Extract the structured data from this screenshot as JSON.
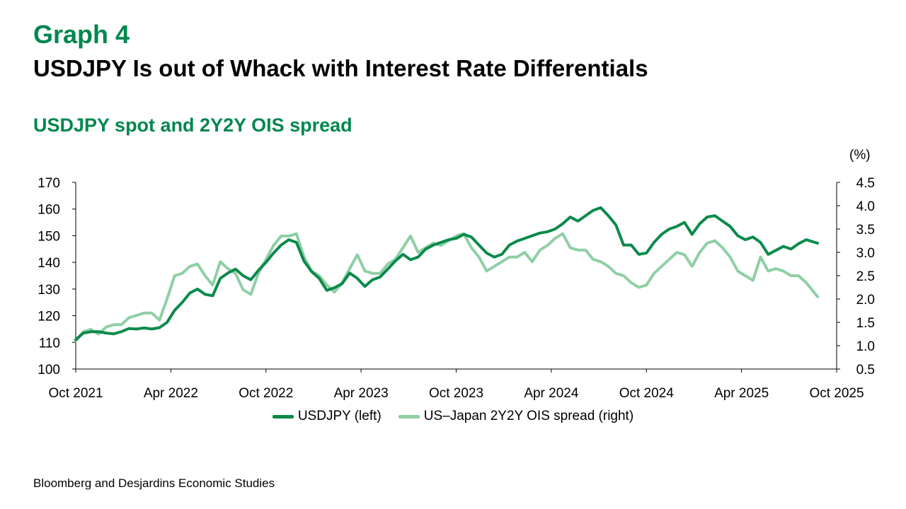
{
  "header": {
    "graph_number": "Graph 4",
    "title": "USDJPY Is out of Whack with Interest Rate Differentials",
    "subtitle": "USDJPY spot and 2Y2Y OIS spread"
  },
  "source": "Bloomberg and Desjardins Economic Studies",
  "colors": {
    "brand": "#00874e",
    "usdjpy": "#0a8a4b",
    "ois": "#8fcfa5"
  },
  "chart_data": {
    "type": "line",
    "title": "USDJPY spot and 2Y2Y OIS spread",
    "xlabel": "",
    "ylabel_left": "",
    "ylabel_right": "(%)",
    "x_ticks": [
      "Oct 2021",
      "Apr 2022",
      "Oct 2022",
      "Apr 2023",
      "Oct 2023",
      "Apr 2024",
      "Oct 2024",
      "Apr 2025",
      "Oct 2025"
    ],
    "x_range": [
      2021.75,
      2025.75
    ],
    "y_left_ticks": [
      "100",
      "110",
      "120",
      "130",
      "140",
      "150",
      "160",
      "170"
    ],
    "y_left_range": [
      100,
      170
    ],
    "y_right_ticks": [
      "0.5",
      "1.0",
      "1.5",
      "2.0",
      "2.5",
      "3.0",
      "3.5",
      "4.0",
      "4.5"
    ],
    "y_right_range": [
      0.5,
      4.5
    ],
    "grid": false,
    "legend_position": "bottom",
    "x": [
      2021.75,
      2021.79,
      2021.83,
      2021.87,
      2021.91,
      2021.95,
      2021.99,
      2022.03,
      2022.07,
      2022.11,
      2022.15,
      2022.19,
      2022.23,
      2022.27,
      2022.31,
      2022.35,
      2022.39,
      2022.43,
      2022.47,
      2022.51,
      2022.55,
      2022.59,
      2022.63,
      2022.67,
      2022.71,
      2022.75,
      2022.79,
      2022.83,
      2022.87,
      2022.91,
      2022.95,
      2022.99,
      2023.03,
      2023.07,
      2023.11,
      2023.15,
      2023.19,
      2023.23,
      2023.27,
      2023.31,
      2023.35,
      2023.39,
      2023.43,
      2023.47,
      2023.51,
      2023.55,
      2023.59,
      2023.63,
      2023.67,
      2023.71,
      2023.75,
      2023.79,
      2023.83,
      2023.87,
      2023.91,
      2023.95,
      2023.99,
      2024.03,
      2024.07,
      2024.11,
      2024.15,
      2024.19,
      2024.23,
      2024.27,
      2024.31,
      2024.35,
      2024.39,
      2024.43,
      2024.47,
      2024.51,
      2024.55,
      2024.59,
      2024.63,
      2024.67,
      2024.71,
      2024.75,
      2024.79,
      2024.83,
      2024.87,
      2024.91,
      2024.95,
      2024.99,
      2025.03,
      2025.07,
      2025.11,
      2025.15,
      2025.19,
      2025.23,
      2025.27,
      2025.31,
      2025.35,
      2025.39,
      2025.43,
      2025.47,
      2025.51,
      2025.55,
      2025.59,
      2025.65
    ],
    "series": [
      {
        "name": "USDJPY (left)",
        "axis": "left",
        "values": [
          111.0,
          113.5,
          114.0,
          114.0,
          113.5,
          113.2,
          114.0,
          115.2,
          115.0,
          115.4,
          115.0,
          115.5,
          117.5,
          122.0,
          125.0,
          128.5,
          130.0,
          128.0,
          127.5,
          134.0,
          136.0,
          137.5,
          135.0,
          133.5,
          137.0,
          140.0,
          143.5,
          146.5,
          148.5,
          147.5,
          140.5,
          136.5,
          134.0,
          129.5,
          130.5,
          132.0,
          136.0,
          134.0,
          131.0,
          133.5,
          134.5,
          137.5,
          140.5,
          143.0,
          141.0,
          142.0,
          145.0,
          146.5,
          147.5,
          148.5,
          149.0,
          150.5,
          149.5,
          146.5,
          143.5,
          142.0,
          143.0,
          146.5,
          148.0,
          149.0,
          150.0,
          151.0,
          151.5,
          152.5,
          154.5,
          157.0,
          155.5,
          157.5,
          159.5,
          160.5,
          157.5,
          154.0,
          146.5,
          146.5,
          143.0,
          143.5,
          147.5,
          150.5,
          152.5,
          153.5,
          155.0,
          150.5,
          154.5,
          157.0,
          157.5,
          155.5,
          153.5,
          150.0,
          148.5,
          149.5,
          147.5,
          143.0,
          144.5,
          146.0,
          145.0,
          147.0,
          148.5,
          147.2
        ]
      },
      {
        "name": "US–Japan 2Y2Y OIS spread (right)",
        "axis": "right",
        "values": [
          1.1,
          1.3,
          1.35,
          1.25,
          1.4,
          1.45,
          1.45,
          1.6,
          1.65,
          1.7,
          1.7,
          1.55,
          2.0,
          2.5,
          2.55,
          2.7,
          2.75,
          2.5,
          2.3,
          2.8,
          2.65,
          2.55,
          2.2,
          2.1,
          2.55,
          2.85,
          3.15,
          3.35,
          3.35,
          3.4,
          2.9,
          2.6,
          2.5,
          2.3,
          2.15,
          2.35,
          2.65,
          2.95,
          2.6,
          2.55,
          2.55,
          2.75,
          2.85,
          3.1,
          3.35,
          3.0,
          3.1,
          3.2,
          3.15,
          3.25,
          3.35,
          3.4,
          3.1,
          2.9,
          2.6,
          2.7,
          2.8,
          2.9,
          2.9,
          3.0,
          2.8,
          3.05,
          3.15,
          3.3,
          3.4,
          3.1,
          3.05,
          3.05,
          2.85,
          2.8,
          2.7,
          2.55,
          2.5,
          2.35,
          2.25,
          2.3,
          2.55,
          2.7,
          2.85,
          3.0,
          2.95,
          2.7,
          3.0,
          3.2,
          3.25,
          3.1,
          2.9,
          2.6,
          2.5,
          2.4,
          2.9,
          2.6,
          2.65,
          2.6,
          2.5,
          2.5,
          2.35,
          2.05
        ]
      }
    ]
  },
  "legend": {
    "items": [
      "USDJPY (left)",
      "US–Japan 2Y2Y OIS spread (right)"
    ]
  }
}
